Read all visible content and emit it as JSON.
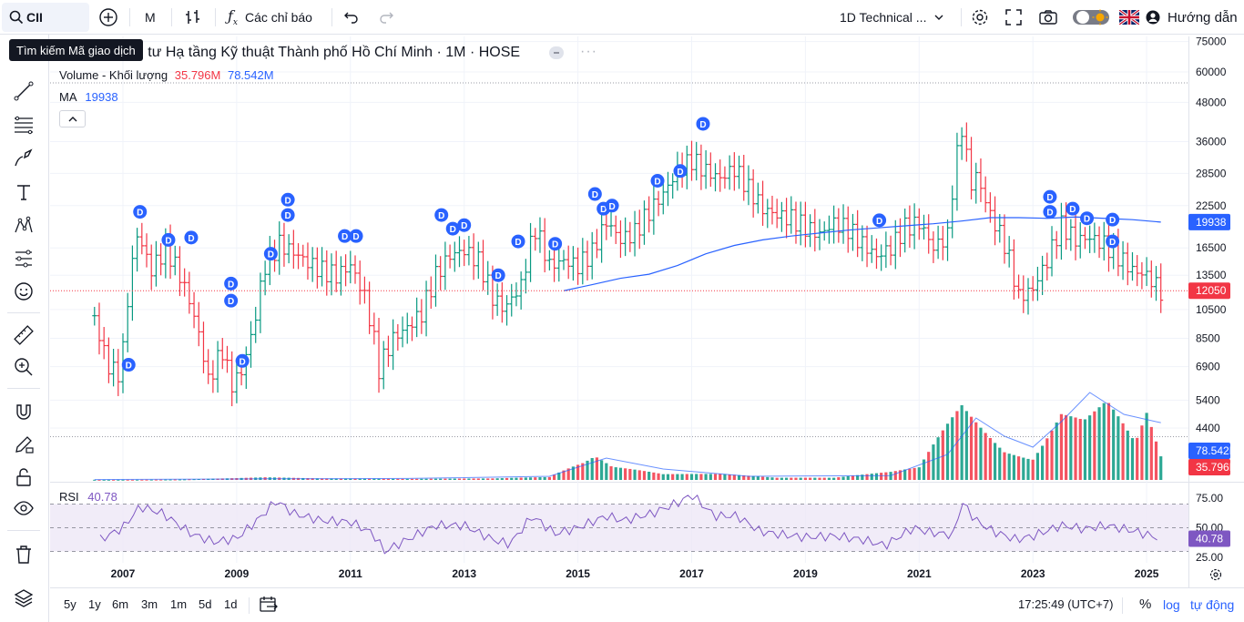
{
  "toolbar": {
    "symbol": "CII",
    "interval": "M",
    "indicators_label": "Các chỉ báo",
    "layout_name": "1D Technical ...",
    "help_label": "Hướng dẫn"
  },
  "tooltip": "Tìm kiếm Mã giao dịch",
  "legend": {
    "title": "ầu tư Hạ tầng Kỹ thuật Thành phố Hồ Chí Minh · 1M · HOSE",
    "volume_label": "Volume - Khối lượng",
    "volume_val1": "35.796M",
    "volume_val2": "78.542M",
    "ma_label": "MA",
    "ma_val": "19938",
    "rsi_label": "RSI",
    "rsi_val": "40.78"
  },
  "colors": {
    "up": "#26a69a",
    "up_dark": "#089981",
    "down": "#f23645",
    "ma": "#2962ff",
    "rsi": "#7e57c2",
    "rsi_bg": "#ede7f6",
    "dividend": "#2962ff"
  },
  "chart_data": {
    "type": "line",
    "price_axis_ticks": [
      "75000",
      "60000",
      "48000",
      "36000",
      "28500",
      "22500",
      "16500",
      "13500",
      "10500",
      "8500",
      "6900",
      "5400",
      "4400"
    ],
    "time_axis_ticks": [
      "2007",
      "2009",
      "2011",
      "2013",
      "2015",
      "2017",
      "2019",
      "2021",
      "2023",
      "2025"
    ],
    "rsi_axis_ticks": [
      "75.00",
      "50.00",
      "25.00"
    ],
    "labels": {
      "ma_last": "19938",
      "last_price": "12050",
      "volume_ma": "78.542M",
      "volume_last": "35.796M",
      "rsi_last": "40.78"
    },
    "price_series": {
      "name": "CII",
      "points": [
        [
          2006.5,
          9800
        ],
        [
          2006.7,
          7200
        ],
        [
          2006.9,
          6400
        ],
        [
          2007.0,
          7800
        ],
        [
          2007.1,
          12000
        ],
        [
          2007.25,
          18200
        ],
        [
          2007.5,
          14000
        ],
        [
          2007.75,
          16500
        ],
        [
          2008.0,
          13500
        ],
        [
          2008.25,
          10000
        ],
        [
          2008.5,
          6200
        ],
        [
          2008.75,
          7800
        ],
        [
          2008.9,
          6000
        ],
        [
          2009.1,
          6700
        ],
        [
          2009.3,
          9200
        ],
        [
          2009.5,
          14500
        ],
        [
          2009.75,
          17000
        ],
        [
          2010.0,
          16000
        ],
        [
          2010.25,
          14800
        ],
        [
          2010.5,
          14000
        ],
        [
          2010.75,
          13500
        ],
        [
          2011.0,
          14500
        ],
        [
          2011.25,
          11500
        ],
        [
          2011.5,
          6800
        ],
        [
          2011.75,
          8500
        ],
        [
          2012.0,
          9200
        ],
        [
          2012.25,
          10200
        ],
        [
          2012.5,
          13500
        ],
        [
          2012.75,
          15600
        ],
        [
          2013.0,
          16200
        ],
        [
          2013.25,
          15000
        ],
        [
          2013.5,
          11500
        ],
        [
          2013.7,
          10500
        ],
        [
          2014.0,
          12500
        ],
        [
          2014.25,
          19000
        ],
        [
          2014.5,
          14500
        ],
        [
          2014.75,
          15000
        ],
        [
          2015.0,
          14500
        ],
        [
          2015.25,
          16000
        ],
        [
          2015.5,
          20000
        ],
        [
          2015.75,
          17500
        ],
        [
          2016.0,
          18500
        ],
        [
          2016.25,
          21500
        ],
        [
          2016.5,
          24500
        ],
        [
          2016.75,
          29000
        ],
        [
          2017.0,
          31500
        ],
        [
          2017.25,
          29000
        ],
        [
          2017.5,
          27500
        ],
        [
          2017.75,
          29500
        ],
        [
          2018.0,
          25500
        ],
        [
          2018.25,
          22000
        ],
        [
          2018.5,
          21000
        ],
        [
          2018.75,
          20500
        ],
        [
          2019.0,
          19200
        ],
        [
          2019.25,
          18200
        ],
        [
          2019.5,
          19800
        ],
        [
          2019.75,
          19000
        ],
        [
          2020.0,
          17000
        ],
        [
          2020.25,
          15500
        ],
        [
          2020.5,
          16500
        ],
        [
          2020.75,
          19200
        ],
        [
          2021.0,
          19800
        ],
        [
          2021.25,
          16500
        ],
        [
          2021.5,
          18000
        ],
        [
          2021.75,
          40000
        ],
        [
          2021.9,
          26000
        ],
        [
          2022.0,
          28000
        ],
        [
          2022.25,
          21000
        ],
        [
          2022.5,
          17000
        ],
        [
          2022.75,
          11500
        ],
        [
          2023.0,
          12200
        ],
        [
          2023.25,
          15000
        ],
        [
          2023.5,
          19500
        ],
        [
          2023.75,
          17500
        ],
        [
          2024.0,
          17800
        ],
        [
          2024.25,
          17000
        ],
        [
          2024.5,
          15500
        ],
        [
          2024.75,
          14000
        ],
        [
          2025.0,
          13500
        ],
        [
          2025.25,
          12050
        ]
      ]
    },
    "ma_series": {
      "name": "MA",
      "points": [
        [
          2014.75,
          12050
        ],
        [
          2015.25,
          12600
        ],
        [
          2015.75,
          13200
        ],
        [
          2016.25,
          13600
        ],
        [
          2016.75,
          14500
        ],
        [
          2017.25,
          15800
        ],
        [
          2017.75,
          16800
        ],
        [
          2018.25,
          17500
        ],
        [
          2018.75,
          18000
        ],
        [
          2019.25,
          18400
        ],
        [
          2019.75,
          18800
        ],
        [
          2020.25,
          19100
        ],
        [
          2020.75,
          19400
        ],
        [
          2021.25,
          19700
        ],
        [
          2021.75,
          20100
        ],
        [
          2022.25,
          20600
        ],
        [
          2022.75,
          20600
        ],
        [
          2023.25,
          20500
        ],
        [
          2023.75,
          20700
        ],
        [
          2024.25,
          20500
        ],
        [
          2024.75,
          20300
        ],
        [
          2025.25,
          19938
        ]
      ]
    },
    "rsi_series": {
      "name": "RSI",
      "points": [
        [
          2006.6,
          40
        ],
        [
          2007.0,
          50
        ],
        [
          2007.3,
          68
        ],
        [
          2007.7,
          62
        ],
        [
          2008.2,
          45
        ],
        [
          2008.6,
          38
        ],
        [
          2009.0,
          41
        ],
        [
          2009.4,
          58
        ],
        [
          2009.7,
          73
        ],
        [
          2010.0,
          62
        ],
        [
          2010.5,
          56
        ],
        [
          2011.0,
          55
        ],
        [
          2011.4,
          45
        ],
        [
          2011.6,
          30
        ],
        [
          2012.0,
          40
        ],
        [
          2012.5,
          52
        ],
        [
          2013.0,
          52
        ],
        [
          2013.5,
          40
        ],
        [
          2013.8,
          36
        ],
        [
          2014.2,
          60
        ],
        [
          2014.6,
          45
        ],
        [
          2015.0,
          50
        ],
        [
          2015.5,
          60
        ],
        [
          2015.8,
          56
        ],
        [
          2016.3,
          62
        ],
        [
          2016.8,
          72
        ],
        [
          2017.0,
          78
        ],
        [
          2017.4,
          60
        ],
        [
          2017.8,
          60
        ],
        [
          2018.2,
          47
        ],
        [
          2018.6,
          44
        ],
        [
          2019.0,
          42
        ],
        [
          2019.5,
          43
        ],
        [
          2020.0,
          40
        ],
        [
          2020.4,
          35
        ],
        [
          2020.9,
          50
        ],
        [
          2021.2,
          46
        ],
        [
          2021.6,
          44
        ],
        [
          2021.75,
          72
        ],
        [
          2022.0,
          56
        ],
        [
          2022.3,
          47
        ],
        [
          2022.7,
          40
        ],
        [
          2023.0,
          43
        ],
        [
          2023.5,
          52
        ],
        [
          2023.9,
          49
        ],
        [
          2024.3,
          52
        ],
        [
          2024.8,
          47
        ],
        [
          2025.25,
          40.78
        ]
      ]
    },
    "volume_series": {
      "name": "Volume",
      "points": [
        [
          2006.5,
          0.3
        ],
        [
          2008.0,
          1.0
        ],
        [
          2009.5,
          4.0
        ],
        [
          2010.5,
          2.0
        ],
        [
          2012.0,
          1.5
        ],
        [
          2013.5,
          2.5
        ],
        [
          2014.5,
          6.0
        ],
        [
          2015.3,
          55.0
        ],
        [
          2015.6,
          28.0
        ],
        [
          2016.5,
          10.0
        ],
        [
          2017.5,
          9.0
        ],
        [
          2018.5,
          3.0
        ],
        [
          2019.5,
          3.0
        ],
        [
          2020.5,
          12.0
        ],
        [
          2021.0,
          20.0
        ],
        [
          2021.75,
          135.0
        ],
        [
          2022.0,
          110.0
        ],
        [
          2022.5,
          60.0
        ],
        [
          2023.0,
          50.0
        ],
        [
          2023.5,
          140.0
        ],
        [
          2023.9,
          115.0
        ],
        [
          2024.3,
          140.0
        ],
        [
          2024.8,
          60.0
        ],
        [
          2025.0,
          105.0
        ],
        [
          2025.25,
          35.796
        ]
      ]
    },
    "volume_ma_series": {
      "name": "Volume MA",
      "points": [
        [
          2006.5,
          0.5
        ],
        [
          2009.5,
          1.5
        ],
        [
          2012.0,
          2.0
        ],
        [
          2014.5,
          5.0
        ],
        [
          2015.5,
          30.0
        ],
        [
          2016.5,
          15.0
        ],
        [
          2018.0,
          5.0
        ],
        [
          2020.5,
          6.0
        ],
        [
          2021.5,
          35.0
        ],
        [
          2022.0,
          85.0
        ],
        [
          2022.5,
          60.0
        ],
        [
          2023.0,
          45.0
        ],
        [
          2023.5,
          80.0
        ],
        [
          2024.0,
          120.0
        ],
        [
          2024.6,
          90.0
        ],
        [
          2025.25,
          78.542
        ]
      ]
    },
    "dividend_marker_label": "D",
    "dividends": [
      [
        2007.1,
        7000
      ],
      [
        2007.3,
        21500
      ],
      [
        2007.8,
        17500
      ],
      [
        2008.2,
        17800
      ],
      [
        2008.9,
        12700
      ],
      [
        2008.9,
        11200
      ],
      [
        2009.1,
        7200
      ],
      [
        2009.6,
        15800
      ],
      [
        2009.9,
        23500
      ],
      [
        2009.9,
        21000
      ],
      [
        2010.9,
        18000
      ],
      [
        2011.1,
        18000
      ],
      [
        2012.6,
        21000
      ],
      [
        2012.8,
        19000
      ],
      [
        2013.0,
        19500
      ],
      [
        2013.6,
        13500
      ],
      [
        2013.95,
        17300
      ],
      [
        2014.6,
        17000
      ],
      [
        2015.3,
        24500
      ],
      [
        2015.45,
        22000
      ],
      [
        2015.6,
        22500
      ],
      [
        2016.4,
        27000
      ],
      [
        2016.8,
        29000
      ],
      [
        2017.2,
        41000
      ],
      [
        2020.3,
        20200
      ],
      [
        2023.3,
        24000
      ],
      [
        2023.3,
        21500
      ],
      [
        2023.7,
        22000
      ],
      [
        2023.95,
        20500
      ],
      [
        2024.4,
        20300
      ],
      [
        2024.4,
        17300
      ]
    ]
  },
  "bottom": {
    "ranges": [
      "5y",
      "1y",
      "6m",
      "3m",
      "1m",
      "5d",
      "1d"
    ],
    "time": "17:25:49 (UTC+7)",
    "percent": "%",
    "log": "log",
    "auto": "tự động"
  }
}
